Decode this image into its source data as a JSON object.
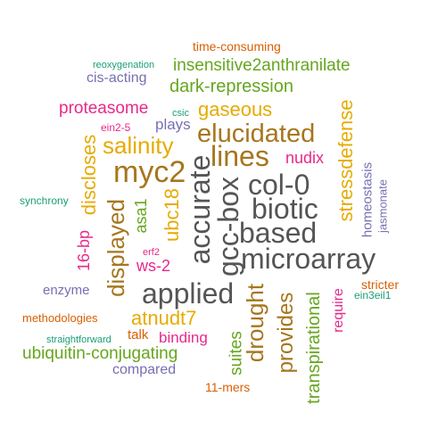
{
  "colors": {
    "orange": "#d95f02",
    "purple": "#7570b3",
    "teal": "#1b9e77",
    "pink": "#e7298a",
    "green": "#66a61e",
    "gold": "#e6ab02",
    "brown": "#a6761d",
    "gray": "#555555"
  },
  "words": {
    "time_consuming": "time-consuming",
    "reoxygenation": "reoxygenation",
    "insensitive2anthranilate": "insensitive2anthranilate",
    "cis_acting": "cis-acting",
    "dark_repression": "dark-repression",
    "proteasome": "proteasome",
    "gaseous": "gaseous",
    "csic": "csic",
    "ein2_5": "ein2-5",
    "plays": "plays",
    "elucidated": "elucidated",
    "salinity": "salinity",
    "lines": "lines",
    "nudix": "nudix",
    "myc2": "myc2",
    "col_0": "col-0",
    "synchrony": "synchrony",
    "biotic": "biotic",
    "based": "based",
    "microarray": "microarray",
    "erf2": "erf2",
    "ws_2": "ws-2",
    "enzyme": "enzyme",
    "applied": "applied",
    "stricter": "stricter",
    "ein3eil1": "ein3eil1",
    "methodologies": "methodologies",
    "atnudt7": "atnudt7",
    "talk": "talk",
    "binding": "binding",
    "straightforward": "straightforward",
    "ubiquitin_conjugating": "ubiquitin-conjugating",
    "compared": "compared",
    "eleven_mers": "11-mers",
    "stressdefense": "stressdefense",
    "homeostasis": "homeostasis",
    "jasmonate": "jasmonate",
    "discloses": "discloses",
    "displayed": "displayed",
    "sixteen_bp": "16-bp",
    "asa1": "asa1",
    "ubc18": "ubc18",
    "accurate": "accurate",
    "gcc_box": "gcc-box",
    "drought": "drought",
    "provides": "provides",
    "suites": "suites",
    "transpirational": "transpirational",
    "require": "require"
  }
}
